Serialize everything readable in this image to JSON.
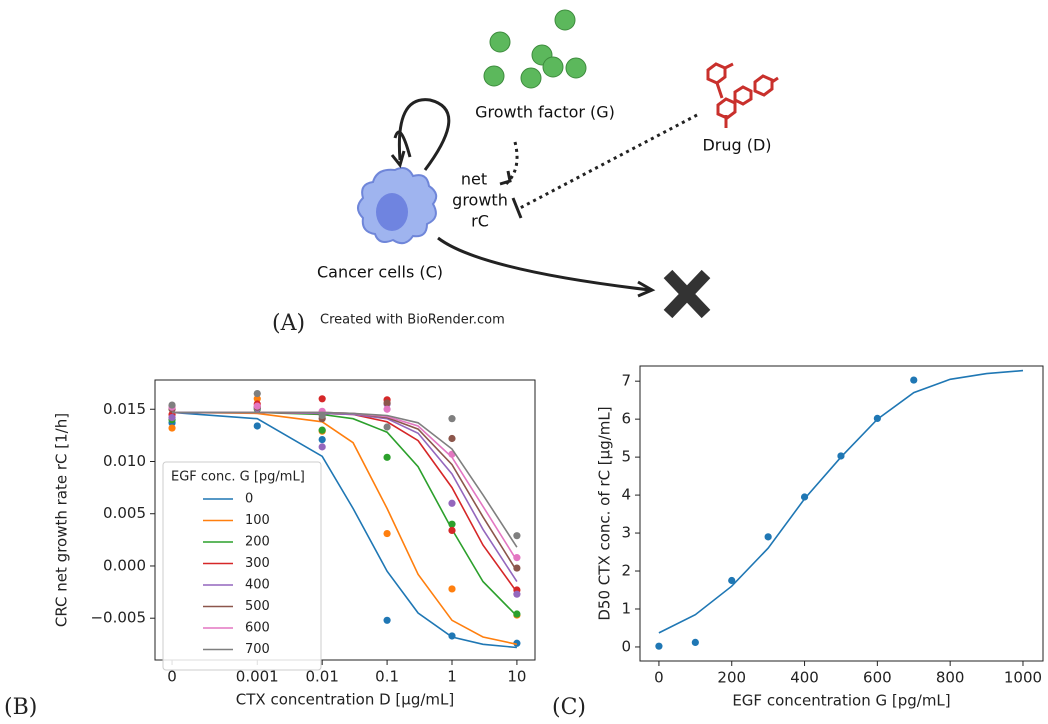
{
  "diagram": {
    "growth_factor": "Growth factor (G)",
    "drug": "Drug (D)",
    "net": "net",
    "growth": "growth",
    "rate": "rC",
    "cancer_cells": "Cancer cells (C)",
    "credit": "Created with BioRender.com"
  },
  "panels": [
    "(A)",
    "(B)",
    "(C)"
  ],
  "chart_data": [
    {
      "type": "scatter",
      "xscale": "symlog",
      "linthresh": 0.001,
      "x_label": "CTX concentration D [μg/mL]",
      "y_label": "CRC net growth rate rC [1/h]",
      "xlim": [
        -0.0002,
        19
      ],
      "ylim": [
        -0.009,
        0.0178
      ],
      "xticks": [
        0,
        0.001,
        0.01,
        0.1,
        1,
        10
      ],
      "yticks": [
        {
          "value": -0.005,
          "label": "−0.005"
        },
        {
          "value": 0,
          "label": "0.000"
        },
        0.005,
        {
          "value": 0.01,
          "label": "0.010"
        },
        0.015
      ],
      "legend": true,
      "legend_title": "EGF conc. G [pg/mL]",
      "x": [
        0,
        0.001,
        0.01,
        0.1,
        1,
        10
      ],
      "fit_x": [
        0,
        0.001,
        0.01,
        0.03,
        0.1,
        0.3,
        1,
        3,
        10
      ],
      "series": [
        {
          "name": "0",
          "color": "#1f77b4",
          "values": [
            0.0137,
            0.0134,
            0.0121,
            -0.0052,
            -0.0067,
            -0.0074
          ],
          "fit": [
            0.0147,
            0.0141,
            0.0105,
            0.0055,
            -0.0005,
            -0.0045,
            -0.0068,
            -0.0075,
            -0.0078
          ]
        },
        {
          "name": "100",
          "color": "#ff7f0e",
          "values": [
            0.0132,
            0.016,
            0.0129,
            0.0031,
            -0.0022,
            -0.0047
          ],
          "fit": [
            0.0147,
            0.0146,
            0.0138,
            0.0118,
            0.0055,
            -0.0008,
            -0.0052,
            -0.0068,
            -0.0075
          ]
        },
        {
          "name": "200",
          "color": "#2ca02c",
          "values": [
            0.014,
            0.015,
            0.013,
            0.0104,
            0.004,
            -0.0046
          ],
          "fit": [
            0.0147,
            0.0147,
            0.0145,
            0.0141,
            0.0128,
            0.0095,
            0.0035,
            -0.0015,
            -0.0048
          ]
        },
        {
          "name": "300",
          "color": "#d62728",
          "values": [
            0.0145,
            0.0155,
            0.016,
            0.0159,
            0.0034,
            -0.0023
          ],
          "fit": [
            0.0147,
            0.0147,
            0.0146,
            0.0145,
            0.0138,
            0.012,
            0.0075,
            0.002,
            -0.0025
          ]
        },
        {
          "name": "400",
          "color": "#9467bd",
          "values": [
            0.0142,
            0.0151,
            0.0114,
            0.0155,
            0.006,
            -0.0027
          ],
          "fit": [
            0.0147,
            0.0147,
            0.0146,
            0.0145,
            0.0141,
            0.0127,
            0.0088,
            0.0035,
            -0.0015
          ]
        },
        {
          "name": "500",
          "color": "#8c564b",
          "values": [
            0.015,
            0.0152,
            0.0141,
            0.0156,
            0.0122,
            -0.0002
          ],
          "fit": [
            0.0147,
            0.0147,
            0.0147,
            0.0146,
            0.0142,
            0.0131,
            0.0097,
            0.0047,
            -0.0005
          ]
        },
        {
          "name": "600",
          "color": "#e377c2",
          "values": [
            0.0152,
            0.0153,
            0.0148,
            0.015,
            0.0107,
            0.0008
          ],
          "fit": [
            0.0147,
            0.0147,
            0.0147,
            0.0146,
            0.0143,
            0.0134,
            0.0104,
            0.0057,
            0.0005
          ]
        },
        {
          "name": "700",
          "color": "#7f7f7f",
          "values": [
            0.0154,
            0.0165,
            0.0144,
            0.0133,
            0.0141,
            0.0029
          ],
          "fit": [
            0.0147,
            0.0147,
            0.0147,
            0.0146,
            0.0144,
            0.0137,
            0.0112,
            0.0068,
            0.0018
          ]
        }
      ]
    },
    {
      "type": "scatter",
      "x_label": "EGF concentration G [pg/mL]",
      "y_label": "D50 CTX conc. of rC [μg/mL]",
      "xlim": [
        -52,
        1055
      ],
      "ylim": [
        -0.37,
        7.4
      ],
      "xticks": [
        0,
        200,
        400,
        600,
        800,
        1000
      ],
      "yticks": [
        0,
        1,
        2,
        3,
        4,
        5,
        6,
        7
      ],
      "x": [
        0,
        100,
        200,
        300,
        400,
        500,
        600,
        700
      ],
      "fit_x": [
        0,
        100,
        200,
        300,
        400,
        500,
        600,
        700,
        800,
        900,
        1000
      ],
      "series": [
        {
          "color": "#1f77b4",
          "values": [
            0.02,
            0.12,
            1.75,
            2.9,
            3.95,
            5.03,
            6.02,
            7.03
          ],
          "fit": [
            0.37,
            0.85,
            1.6,
            2.6,
            3.9,
            5.0,
            6.0,
            6.7,
            7.05,
            7.2,
            7.28
          ]
        }
      ]
    }
  ]
}
